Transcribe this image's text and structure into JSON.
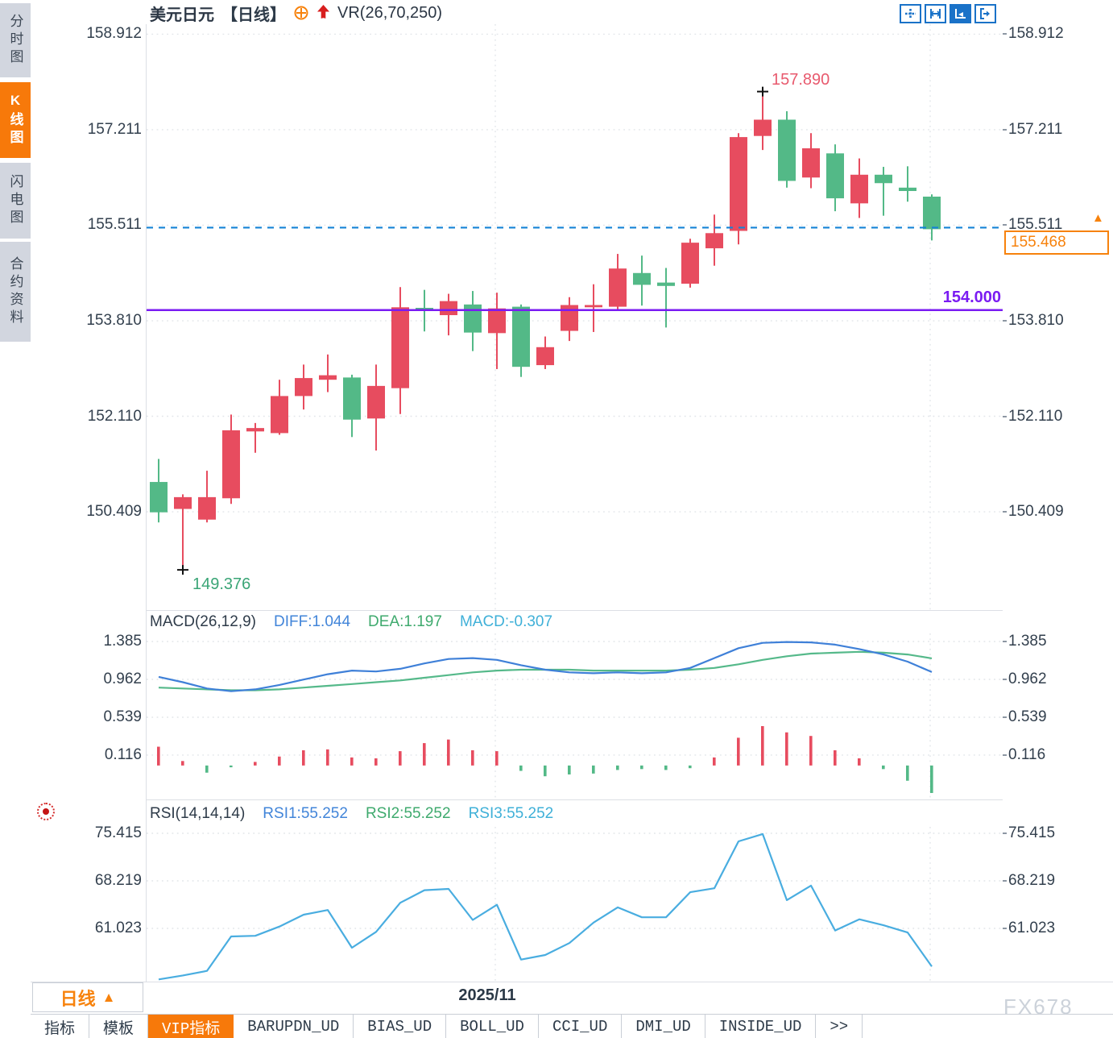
{
  "header": {
    "symbol": "美元日元",
    "period_tag": "【日线】",
    "indicator": "VR(26,70,250)"
  },
  "sidebar": {
    "items": [
      {
        "label": "分时图",
        "active": false
      },
      {
        "label": "K线图",
        "active": true
      },
      {
        "label": "闪电图",
        "active": false
      },
      {
        "label": "合约资料",
        "active": false
      }
    ]
  },
  "toolbar": {
    "icons": [
      "pan-crosshair",
      "axis-range",
      "axis-play",
      "exit-right"
    ],
    "active_index": 2
  },
  "annotations": {
    "high": "157.890",
    "low": "149.376",
    "support": "154.000",
    "last_price": "155.468"
  },
  "macd_header": {
    "title": "MACD(26,12,9)",
    "diff": "DIFF:1.044",
    "dea": "DEA:1.197",
    "macd": "MACD:-0.307"
  },
  "rsi_header": {
    "title": "RSI(14,14,14)",
    "rsi1": "RSI1:55.252",
    "rsi2": "RSI2:55.252",
    "rsi3": "RSI3:55.252"
  },
  "xaxis": {
    "label": "2025/11",
    "period_button": "日线",
    "period_arrow": "▲"
  },
  "bottom_tabs": {
    "items": [
      "指标",
      "模板",
      "VIP指标",
      "BARUPDN_UD",
      "BIAS_UD",
      "BOLL_UD",
      "CCI_UD",
      "DMI_UD",
      "INSIDE_UD",
      ">>"
    ],
    "active_index": 2
  },
  "watermark": "FX678",
  "colors": {
    "up": "#e74c5f",
    "down": "#53b987",
    "diff_line": "#3f80d8",
    "dea_line": "#55b98a",
    "rsi_line": "#49ade0",
    "support_line": "#7a1bf2",
    "last_price_line": "#1583d6",
    "accent_orange": "#f7820c",
    "label_blue": "#4285d9",
    "label_green": "#3faa6e",
    "label_cyan": "#3fb0d8",
    "high_label": "#e85a6e",
    "low_label": "#3aa576"
  },
  "chart_data": {
    "type": "candlestick",
    "panels": [
      "price",
      "MACD",
      "RSI"
    ],
    "ohlc_order": "o,h,l,c",
    "candles": [
      [
        150.94,
        151.35,
        150.22,
        150.4
      ],
      [
        150.46,
        150.72,
        149.376,
        150.67
      ],
      [
        150.27,
        151.14,
        150.22,
        150.67
      ],
      [
        150.65,
        152.14,
        150.55,
        151.86
      ],
      [
        151.84,
        151.99,
        151.46,
        151.9
      ],
      [
        151.81,
        152.76,
        151.78,
        152.47
      ],
      [
        152.47,
        153.03,
        152.23,
        152.79
      ],
      [
        152.76,
        153.21,
        152.54,
        152.84
      ],
      [
        152.8,
        152.85,
        151.74,
        152.05
      ],
      [
        152.07,
        153.03,
        151.5,
        152.65
      ],
      [
        152.61,
        154.41,
        152.15,
        154.05
      ],
      [
        154.04,
        154.36,
        153.62,
        153.99
      ],
      [
        153.91,
        154.29,
        153.55,
        154.16
      ],
      [
        154.1,
        154.34,
        153.27,
        153.6
      ],
      [
        153.59,
        154.31,
        152.95,
        154.03
      ],
      [
        154.06,
        154.1,
        152.81,
        152.99
      ],
      [
        153.02,
        153.53,
        152.95,
        153.34
      ],
      [
        153.63,
        154.23,
        153.45,
        154.09
      ],
      [
        154.05,
        154.46,
        153.61,
        154.09
      ],
      [
        154.06,
        155.0,
        153.99,
        154.74
      ],
      [
        154.66,
        154.97,
        154.08,
        154.45
      ],
      [
        154.49,
        154.75,
        153.69,
        154.43
      ],
      [
        154.47,
        155.27,
        154.4,
        155.2
      ],
      [
        155.1,
        155.7,
        154.79,
        155.37
      ],
      [
        155.41,
        157.15,
        155.17,
        157.08
      ],
      [
        157.1,
        157.89,
        156.85,
        157.39
      ],
      [
        157.39,
        157.54,
        156.18,
        156.3
      ],
      [
        156.36,
        157.15,
        156.17,
        156.88
      ],
      [
        156.79,
        156.95,
        155.76,
        155.99
      ],
      [
        155.9,
        156.7,
        155.64,
        156.41
      ],
      [
        156.41,
        156.55,
        155.68,
        156.26
      ],
      [
        156.18,
        156.56,
        155.93,
        156.12
      ],
      [
        156.02,
        156.06,
        155.24,
        155.44
      ]
    ],
    "price_axis": [
      158.912,
      157.211,
      155.511,
      153.81,
      152.11,
      150.409
    ],
    "support_line": 154.0,
    "last_price": 155.468,
    "high_marker": {
      "index": 25,
      "price": 157.89
    },
    "low_marker": {
      "index": 1,
      "price": 149.376
    },
    "x_gridline_indices": [
      14,
      32
    ],
    "x_label": "2025/11",
    "macd": {
      "params": [
        26,
        12,
        9
      ],
      "axis": [
        1.385,
        0.962,
        0.539,
        0.116
      ],
      "last": {
        "diff": 1.044,
        "dea": 1.197,
        "macd": -0.307
      },
      "diff": [
        0.99,
        0.93,
        0.86,
        0.83,
        0.85,
        0.9,
        0.96,
        1.02,
        1.06,
        1.05,
        1.08,
        1.14,
        1.19,
        1.2,
        1.18,
        1.12,
        1.07,
        1.04,
        1.03,
        1.04,
        1.03,
        1.04,
        1.09,
        1.2,
        1.31,
        1.37,
        1.38,
        1.375,
        1.35,
        1.3,
        1.24,
        1.16,
        1.044
      ],
      "dea": [
        0.87,
        0.86,
        0.85,
        0.84,
        0.84,
        0.85,
        0.87,
        0.89,
        0.91,
        0.93,
        0.95,
        0.98,
        1.01,
        1.04,
        1.06,
        1.07,
        1.07,
        1.07,
        1.06,
        1.06,
        1.06,
        1.06,
        1.07,
        1.09,
        1.13,
        1.18,
        1.22,
        1.25,
        1.26,
        1.27,
        1.26,
        1.24,
        1.197
      ],
      "hist": [
        0.21,
        0.05,
        -0.08,
        -0.02,
        0.04,
        0.1,
        0.17,
        0.18,
        0.09,
        0.08,
        0.16,
        0.25,
        0.29,
        0.17,
        0.16,
        -0.06,
        -0.12,
        -0.1,
        -0.09,
        -0.05,
        -0.04,
        -0.05,
        -0.03,
        0.09,
        0.31,
        0.44,
        0.37,
        0.33,
        0.17,
        0.08,
        -0.04,
        -0.17,
        -0.307
      ]
    },
    "rsi": {
      "params": [
        14,
        14,
        14
      ],
      "axis": [
        75.415,
        68.219,
        61.023
      ],
      "last": 55.252,
      "values": [
        53.3,
        53.9,
        54.6,
        59.8,
        59.9,
        61.3,
        63.1,
        63.8,
        58.1,
        60.5,
        64.9,
        66.8,
        67.0,
        62.3,
        64.6,
        56.3,
        57.0,
        58.8,
        61.9,
        64.2,
        62.7,
        62.7,
        66.5,
        67.1,
        74.2,
        75.3,
        65.3,
        67.5,
        60.7,
        62.4,
        61.5,
        60.4,
        55.252
      ]
    }
  }
}
